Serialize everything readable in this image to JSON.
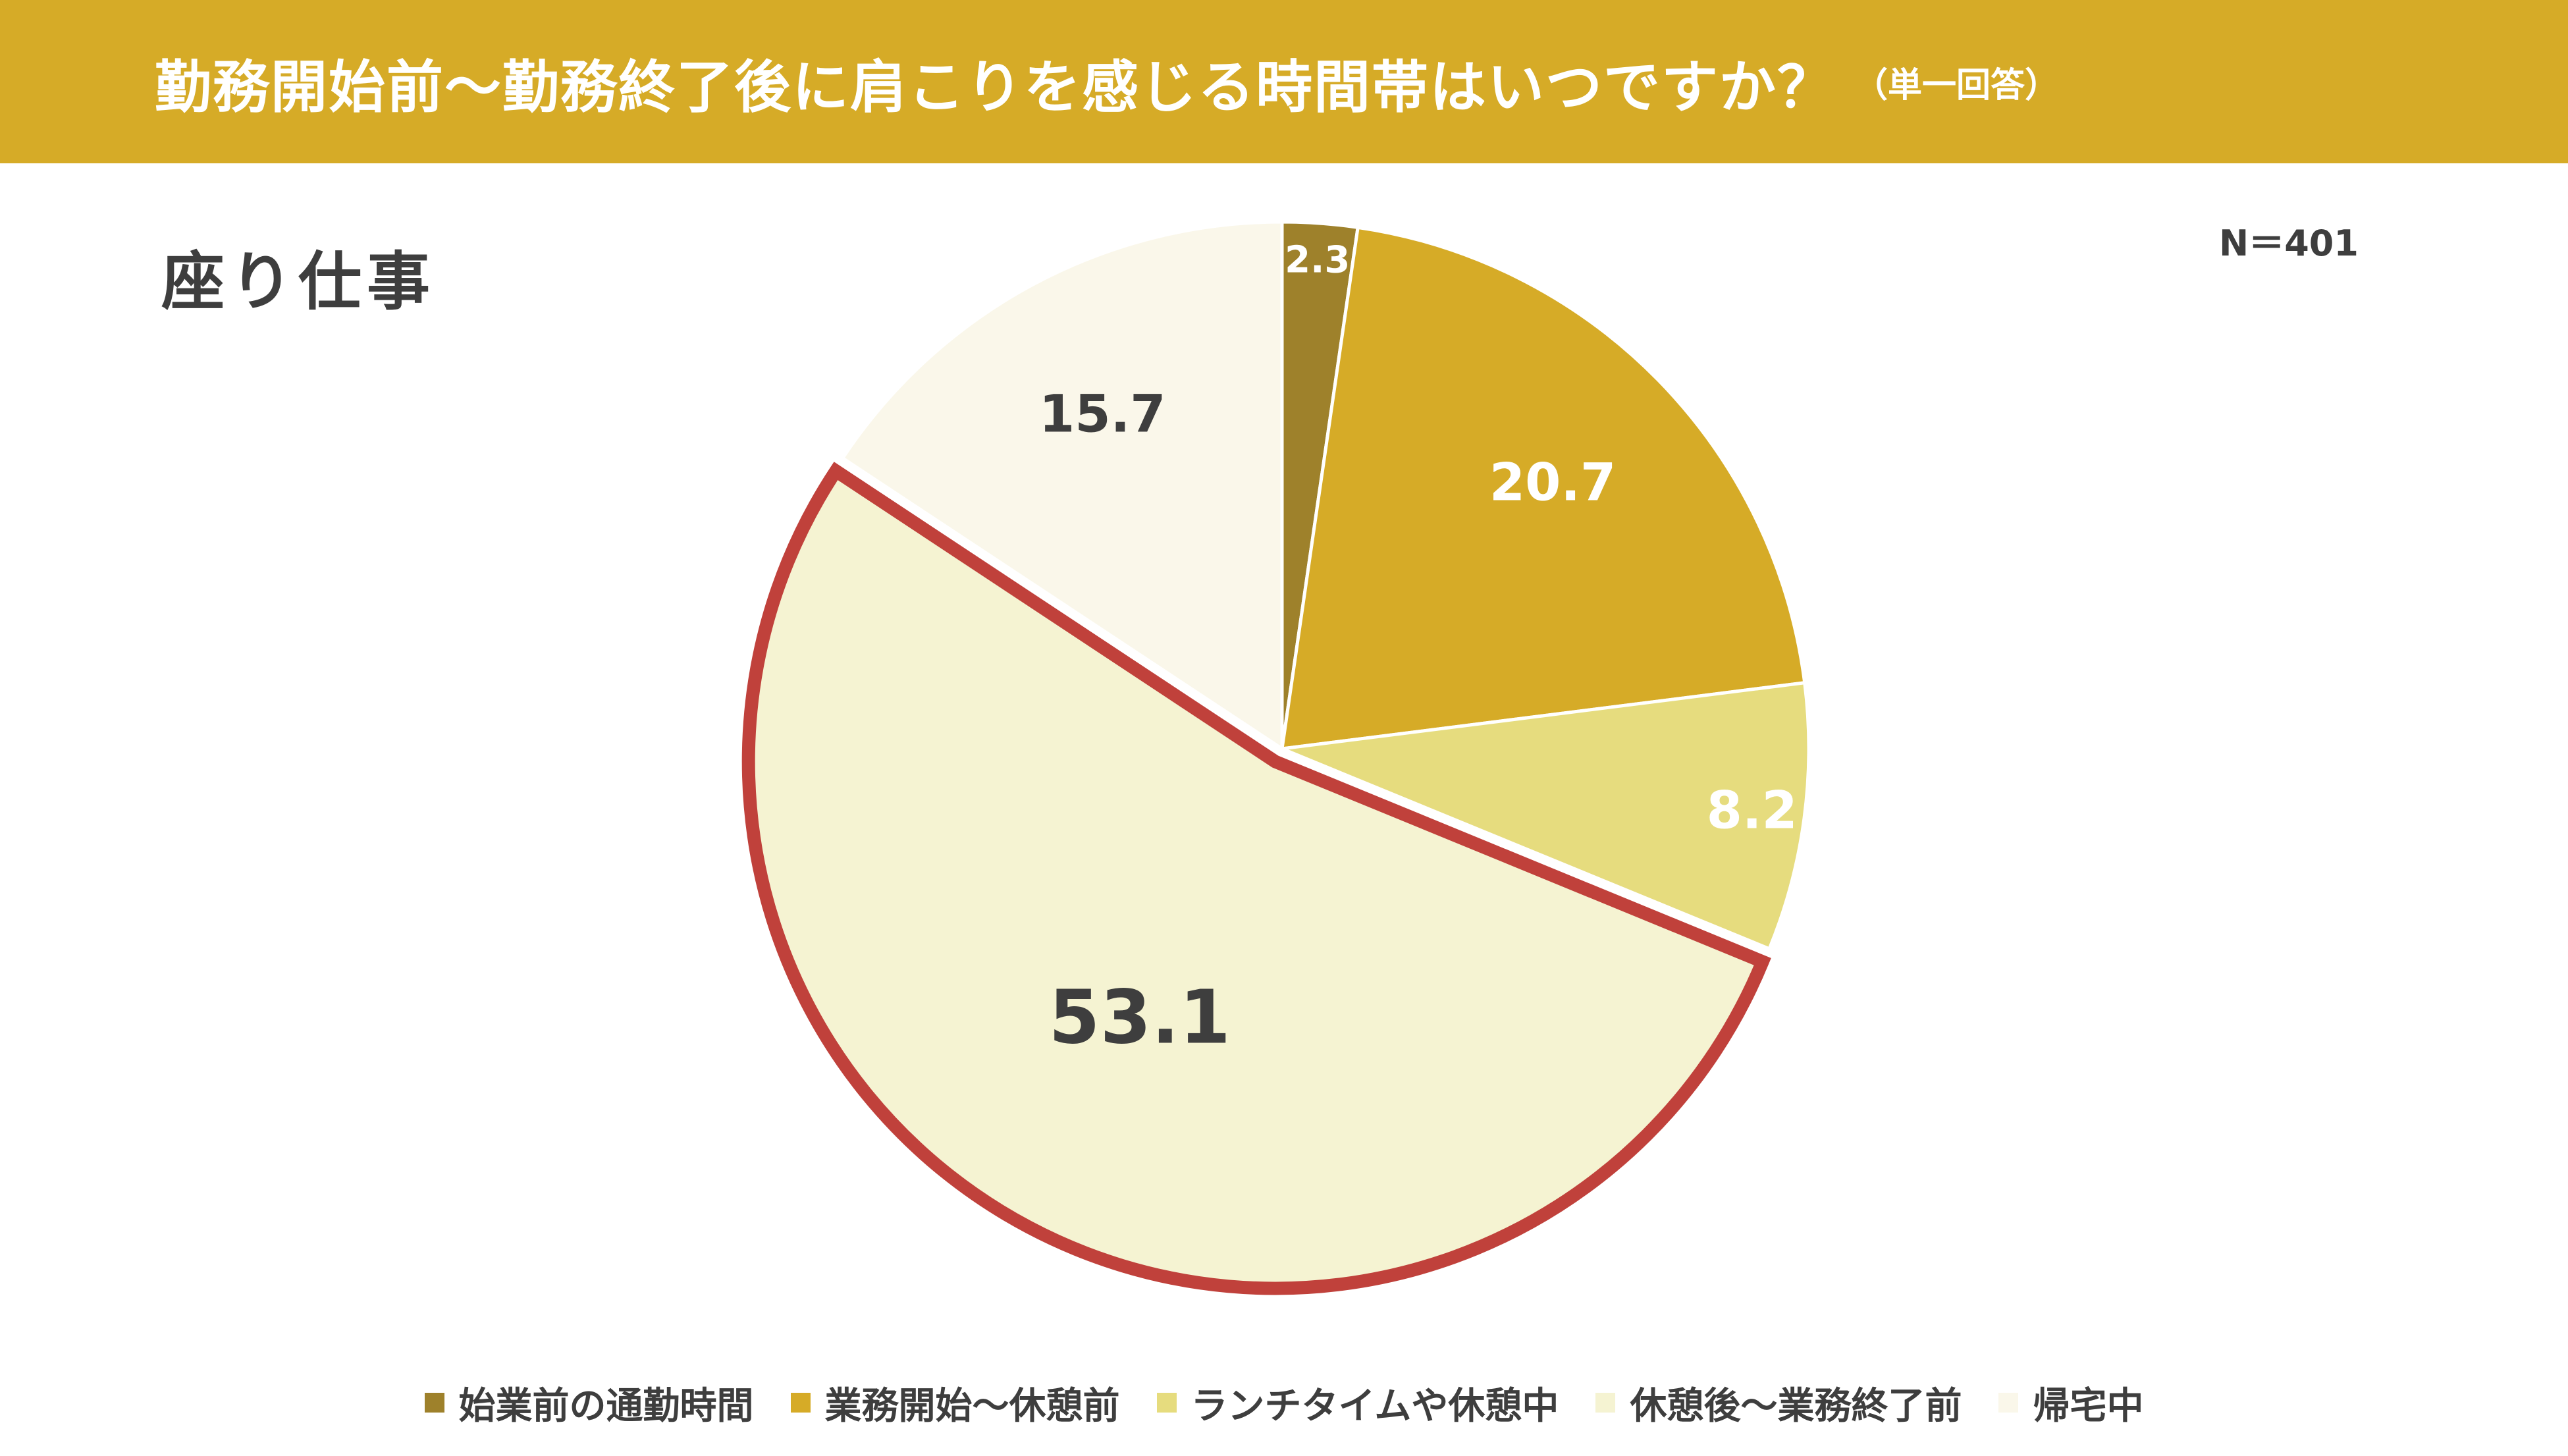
{
  "header": {
    "title": "勤務開始前～勤務終了後に肩こりを感じる時間帯はいつですか？",
    "note": "（単一回答）"
  },
  "subtitle": "座り仕事",
  "sample_size": "N＝401",
  "chart_data": {
    "type": "pie",
    "title": "勤務開始前～勤務終了後に肩こりを感じる時間帯はいつですか？",
    "categories": [
      "始業前の通勤時間",
      "業務開始～休憩前",
      "ランチタイムや休憩中",
      "休憩後～業務終了前",
      "帰宅中"
    ],
    "values": [
      2.3,
      20.7,
      8.2,
      53.1,
      15.7
    ],
    "labels": [
      "2.3",
      "20.7",
      "8.2",
      "53.1",
      "15.7"
    ],
    "colors": [
      "#9e812b",
      "#d6ab27",
      "#e6dc7e",
      "#f5f3d2",
      "#faf7ea"
    ],
    "label_colors": [
      "#ffffff",
      "#ffffff",
      "#ffffff",
      "#3e3e3e",
      "#3e3e3e"
    ],
    "highlight_index": 3,
    "highlight_color": "#c0413b",
    "legend_placement": "bottom",
    "start_angle": "12 o'clock, clockwise"
  },
  "legend": {
    "items": [
      {
        "label": "始業前の通勤時間",
        "color": "#9e812b"
      },
      {
        "label": "業務開始～休憩前",
        "color": "#d6ab27"
      },
      {
        "label": "ランチタイムや休憩中",
        "color": "#e6dc7e"
      },
      {
        "label": "休憩後～業務終了前",
        "color": "#f5f3d2"
      },
      {
        "label": "帰宅中",
        "color": "#faf7ea"
      }
    ]
  }
}
